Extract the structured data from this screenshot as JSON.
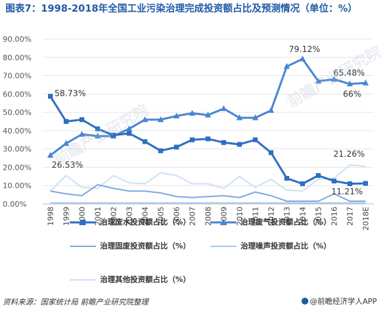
{
  "title": "图表7：1998-2018年全国工业污染治理完成投资额占比及预测情况（单位：%）",
  "source": "资料来源：国家统计局 前瞻产业研究院整理",
  "brand": "@前瞻经济学人APP",
  "watermark": "前瞻产业研究院",
  "chart_data": {
    "type": "line",
    "categories": [
      "1998",
      "1999",
      "2000",
      "2001",
      "2002",
      "2003",
      "2004",
      "2005",
      "2006",
      "2007",
      "2008",
      "2009",
      "2010",
      "2011",
      "2012",
      "2013",
      "2014",
      "2015",
      "2016",
      "2017",
      "2018E"
    ],
    "y_ticks": [
      "0.00%",
      "10.00%",
      "20.00%",
      "30.00%",
      "40.00%",
      "50.00%",
      "60.00%",
      "70.00%",
      "80.00%",
      "90.00%"
    ],
    "ylim": [
      0,
      90
    ],
    "grid": true,
    "legend_position": "bottom",
    "series": [
      {
        "name": "治理废水投资额占比（%）",
        "color": "#2e6fc0",
        "marker": "square",
        "width": 3,
        "values": [
          58.73,
          45,
          46,
          41,
          37.5,
          38.5,
          34,
          29,
          31,
          35,
          35.5,
          33.5,
          32.5,
          35,
          28,
          14,
          11,
          15.5,
          12.5,
          11,
          11.21
        ]
      },
      {
        "name": "治理废气投资额占比（%）",
        "color": "#4a86cf",
        "marker": "triangle",
        "width": 3,
        "values": [
          26.53,
          33,
          38,
          37,
          37,
          41,
          46,
          46,
          48,
          49.5,
          48.5,
          52,
          47,
          47,
          51,
          75,
          79.12,
          67,
          68,
          65.48,
          66
        ]
      },
      {
        "name": "治理固废投资额占比（%）",
        "color": "#7fa9dd",
        "marker": "none",
        "width": 2,
        "values": [
          7,
          5.5,
          4.5,
          10.5,
          8.5,
          7,
          7,
          6,
          4,
          3.5,
          4,
          4.5,
          3.5,
          6.5,
          4.5,
          1.5,
          1.5,
          1.5,
          5.5,
          1.5,
          1.5
        ]
      },
      {
        "name": "治理噪声投资额占比（%）",
        "color": "#a9c8ec",
        "marker": "none",
        "width": 2,
        "values": [
          0.5,
          0.5,
          0.5,
          0.5,
          0.5,
          0.5,
          0.5,
          0.5,
          0.5,
          0.5,
          0.5,
          0.5,
          0.5,
          0.5,
          0.5,
          0.5,
          0.5,
          0.5,
          0.5,
          0.5,
          0.5
        ]
      },
      {
        "name": "治理其他投资额占比（%）",
        "color": "#cfe0f5",
        "marker": "none",
        "width": 2,
        "values": [
          7,
          15.5,
          9,
          8.5,
          15.5,
          11.5,
          11,
          17,
          15.5,
          11,
          11,
          8.5,
          15,
          9,
          13.5,
          7.5,
          7,
          13.5,
          14,
          21.26,
          20.5
        ]
      }
    ],
    "annotations": [
      {
        "text": "58.73%",
        "series": 0,
        "index": 0
      },
      {
        "text": "26.53%",
        "series": 1,
        "index": 0
      },
      {
        "text": "79.12%",
        "series": 1,
        "index": 16
      },
      {
        "text": "65.48%",
        "series": 1,
        "index": 19
      },
      {
        "text": "66%",
        "series": 1,
        "index": 20
      },
      {
        "text": "21.26%",
        "series": 4,
        "index": 19
      },
      {
        "text": "11.21%",
        "series": 0,
        "index": 20
      }
    ]
  }
}
